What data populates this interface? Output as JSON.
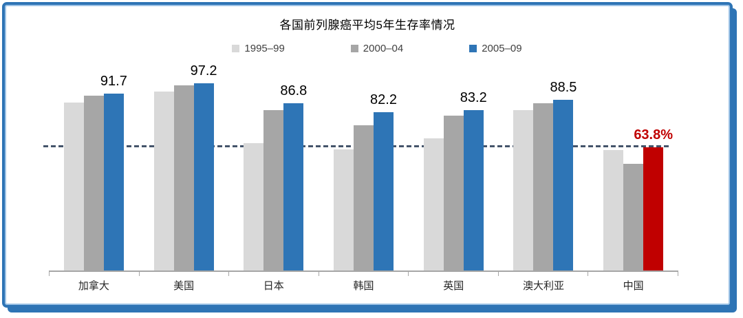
{
  "title": "各国前列腺癌平均5年生存率情况",
  "legend": [
    {
      "label": "1995–99",
      "color": "#d9d9d9"
    },
    {
      "label": "2000–04",
      "color": "#a6a6a6"
    },
    {
      "label": "2005–09",
      "color": "#2e75b6"
    }
  ],
  "chart_data": {
    "type": "bar",
    "title": "各国前列腺癌平均5年生存率情况",
    "categories": [
      "加拿大",
      "美国",
      "日本",
      "韩国",
      "英国",
      "澳大利亚",
      "中国"
    ],
    "series": [
      {
        "name": "1995–99",
        "color": "#d9d9d9",
        "values": [
          87.0,
          93.0,
          66.0,
          63.0,
          68.5,
          83.2,
          62.5
        ]
      },
      {
        "name": "2000–04",
        "color": "#a6a6a6",
        "values": [
          90.6,
          96.1,
          83.3,
          75.5,
          80.5,
          86.9,
          55.5
        ]
      },
      {
        "name": "2005–09",
        "color": "#2e75b6",
        "values": [
          91.7,
          97.2,
          86.8,
          82.2,
          83.2,
          88.5,
          63.8
        ]
      }
    ],
    "data_labels": [
      "91.7",
      "97.2",
      "86.8",
      "82.2",
      "83.2",
      "88.5",
      "63.8%"
    ],
    "highlight": {
      "category": "中国",
      "series": "2005–09",
      "bar_color": "#c00000",
      "label_color": "#c00000"
    },
    "reference_line": {
      "value": 63.8,
      "style": "dashed",
      "color": "#44546a"
    },
    "ylim": [
      0,
      105
    ],
    "grid": false,
    "legend_position": "top"
  },
  "colors": {
    "frame_border": "#2e74b5",
    "frame_shadow": "#2e74b5",
    "axis": "#a6a6a6",
    "label_text": "#000000",
    "category_text": "#262626"
  }
}
